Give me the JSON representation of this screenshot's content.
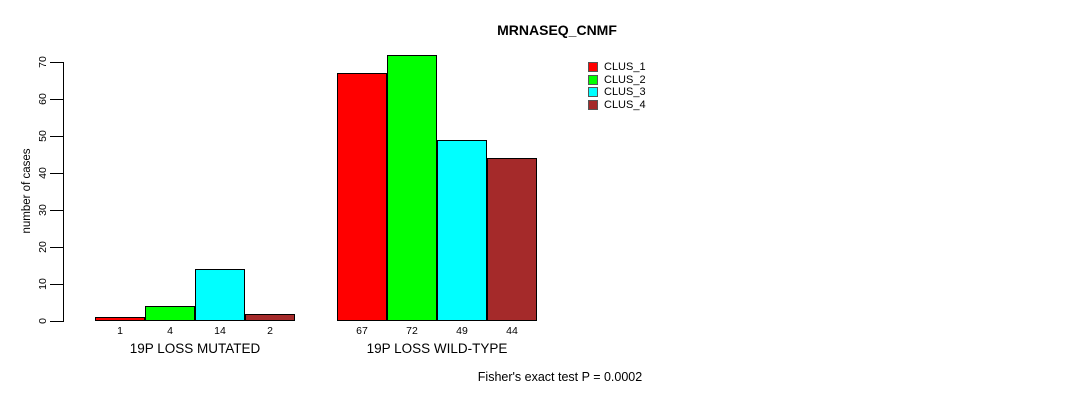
{
  "title": "MRNASEQ_CNMF",
  "footer": {
    "text": "Fisher's exact test P = 0.0002"
  },
  "legend": {
    "items": [
      {
        "label": "CLUS_1",
        "color": "#FF0000"
      },
      {
        "label": "CLUS_2",
        "color": "#00FF00"
      },
      {
        "label": "CLUS_3",
        "color": "#00FFFF"
      },
      {
        "label": "CLUS_4",
        "color": "#A52A2A"
      }
    ]
  },
  "chart_data": {
    "type": "bar",
    "categories": [
      "19P LOSS MUTATED",
      "19P LOSS WILD-TYPE"
    ],
    "series": [
      {
        "name": "CLUS_1",
        "color": "#FF0000",
        "values": [
          1,
          67
        ]
      },
      {
        "name": "CLUS_2",
        "color": "#00FF00",
        "values": [
          4,
          72
        ]
      },
      {
        "name": "CLUS_3",
        "color": "#00FFFF",
        "values": [
          14,
          49
        ]
      },
      {
        "name": "CLUS_4",
        "color": "#A52A2A",
        "values": [
          2,
          44
        ]
      }
    ],
    "bar_value_labels": [
      [
        "1",
        "4",
        "14",
        "2"
      ],
      [
        "67",
        "72",
        "49",
        "44"
      ]
    ],
    "title": "MRNASEQ_CNMF",
    "xlabel": "",
    "ylabel": "number of cases",
    "ylim": [
      0,
      70
    ],
    "yticks": [
      0,
      10,
      20,
      30,
      40,
      50,
      60,
      70
    ],
    "grid": false,
    "legend_position": "top-right",
    "annotation": "Fisher's exact test P = 0.0002"
  }
}
